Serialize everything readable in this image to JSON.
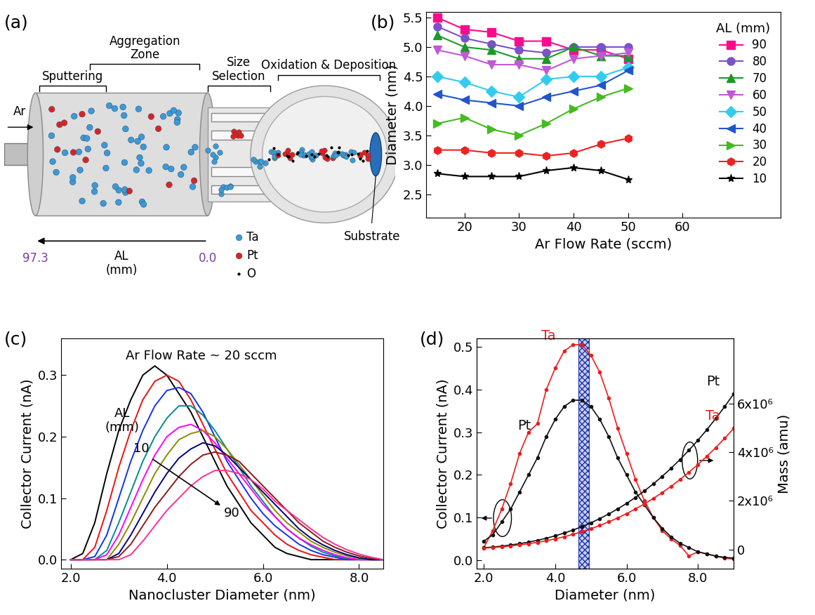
{
  "diagram": {
    "panel_label": "(a)",
    "labels": {
      "sputtering": "Sputtering",
      "aggregation": "Aggregation\nZone",
      "size_selection": "Size\nSelection",
      "oxidation": "Oxidation & Deposition",
      "substrate": "Substrate",
      "gas": "Ar"
    },
    "axis": {
      "label": "AL\n(mm)",
      "start": "97.3",
      "end": "0.0"
    },
    "species": [
      {
        "name": "Ta",
        "color": "#3a9ad9"
      },
      {
        "name": "Pt",
        "color": "#e02020"
      },
      {
        "name": "O",
        "color": "#000000"
      }
    ]
  },
  "chart_data": [
    {
      "type": "line",
      "panel_label": "(b)",
      "x_label": "Ar Flow Rate (sccm)",
      "y_label": "Diameter (nm)",
      "legend": "upper right",
      "legend_title": "AL (mm)",
      "x": [
        15,
        20,
        25,
        30,
        35,
        40,
        45,
        50
      ],
      "xlim": [
        13,
        78
      ],
      "xticks": [
        20,
        30,
        40,
        50,
        60
      ],
      "ylim": [
        2.1,
        5.6
      ],
      "yticks": [
        2.5,
        3.0,
        3.5,
        4.0,
        4.5,
        5.0,
        5.5
      ],
      "series": [
        {
          "name": "90",
          "color": "#ff0a8c",
          "marker": "square",
          "values": [
            5.5,
            5.3,
            5.25,
            5.1,
            5.1,
            4.95,
            4.95,
            4.8
          ]
        },
        {
          "name": "80",
          "color": "#7b52c7",
          "marker": "circle",
          "values": [
            5.35,
            5.15,
            5.05,
            4.95,
            4.9,
            5.0,
            5.0,
            5.0
          ]
        },
        {
          "name": "70",
          "color": "#1a9a2a",
          "marker": "triangle_up",
          "values": [
            5.2,
            5.0,
            4.95,
            4.8,
            4.8,
            5.0,
            4.85,
            4.85
          ]
        },
        {
          "name": "60",
          "color": "#c058d8",
          "marker": "triangle_down",
          "values": [
            4.95,
            4.85,
            4.7,
            4.7,
            4.6,
            4.8,
            4.85,
            4.9
          ]
        },
        {
          "name": "50",
          "color": "#33ccee",
          "marker": "diamond",
          "values": [
            4.5,
            4.4,
            4.25,
            4.15,
            4.45,
            4.5,
            4.5,
            4.65
          ]
        },
        {
          "name": "40",
          "color": "#2255cc",
          "marker": "triangle_left",
          "values": [
            4.2,
            4.1,
            4.05,
            4.0,
            4.15,
            4.25,
            4.35,
            4.6
          ]
        },
        {
          "name": "30",
          "color": "#44bb22",
          "marker": "triangle_right",
          "values": [
            3.7,
            3.8,
            3.6,
            3.5,
            3.7,
            3.95,
            4.15,
            4.3
          ]
        },
        {
          "name": "20",
          "color": "#ee2222",
          "marker": "hexagon",
          "values": [
            3.25,
            3.25,
            3.2,
            3.2,
            3.15,
            3.2,
            3.35,
            3.45
          ]
        },
        {
          "name": "10",
          "color": "#000000",
          "marker": "star",
          "values": [
            2.85,
            2.8,
            2.8,
            2.8,
            2.9,
            2.95,
            2.9,
            2.75
          ]
        }
      ]
    },
    {
      "type": "line",
      "panel_label": "(c)",
      "x_label": "Nanocluster Diameter (nm)",
      "y_label": "Collector Current (nA)",
      "annotations": {
        "condition": "Ar Flow Rate ~ 20 sccm",
        "group": "AL\n(mm)",
        "first": "10",
        "last": "90"
      },
      "x": [
        2.0,
        2.25,
        2.5,
        2.75,
        3.0,
        3.25,
        3.5,
        3.75,
        4.0,
        4.25,
        4.5,
        4.75,
        5.0,
        5.25,
        5.5,
        5.75,
        6.0,
        6.25,
        6.5,
        6.75,
        7.0,
        7.25,
        7.5,
        7.75,
        8.0,
        8.25,
        8.5
      ],
      "xlim": [
        1.8,
        8.5
      ],
      "xticks": [
        2.0,
        4.0,
        6.0,
        8.0
      ],
      "ylim": [
        -0.015,
        0.36
      ],
      "yticks": [
        0.0,
        0.1,
        0.2,
        0.3
      ],
      "series": [
        {
          "color": "#000000",
          "values": [
            0.0,
            0.01,
            0.06,
            0.14,
            0.21,
            0.26,
            0.3,
            0.315,
            0.3,
            0.27,
            0.24,
            0.2,
            0.16,
            0.12,
            0.09,
            0.06,
            0.04,
            0.02,
            0.01,
            0.005,
            0.0,
            0,
            0,
            0,
            0,
            0,
            0
          ]
        },
        {
          "color": "#ee1111",
          "values": [
            0.0,
            0.0,
            0.02,
            0.08,
            0.15,
            0.21,
            0.26,
            0.29,
            0.3,
            0.29,
            0.26,
            0.22,
            0.18,
            0.14,
            0.11,
            0.08,
            0.06,
            0.04,
            0.025,
            0.015,
            0.008,
            0.004,
            0,
            0,
            0,
            0,
            0
          ]
        },
        {
          "color": "#1133ee",
          "values": [
            0,
            0,
            0.005,
            0.04,
            0.1,
            0.16,
            0.21,
            0.25,
            0.275,
            0.28,
            0.27,
            0.24,
            0.2,
            0.16,
            0.13,
            0.1,
            0.075,
            0.055,
            0.04,
            0.025,
            0.015,
            0.008,
            0.004,
            0,
            0,
            0,
            0
          ]
        },
        {
          "color": "#008b8b",
          "values": [
            0,
            0,
            0,
            0.015,
            0.06,
            0.11,
            0.16,
            0.2,
            0.23,
            0.25,
            0.25,
            0.235,
            0.21,
            0.18,
            0.15,
            0.12,
            0.095,
            0.07,
            0.05,
            0.035,
            0.022,
            0.012,
            0.006,
            0.002,
            0,
            0,
            0
          ]
        },
        {
          "color": "#ff00ff",
          "values": [
            0,
            0,
            0,
            0.008,
            0.04,
            0.085,
            0.13,
            0.17,
            0.2,
            0.215,
            0.22,
            0.21,
            0.19,
            0.165,
            0.14,
            0.115,
            0.09,
            0.07,
            0.05,
            0.035,
            0.024,
            0.015,
            0.008,
            0.003,
            0,
            0,
            0
          ]
        },
        {
          "color": "#8b8b00",
          "values": [
            0,
            0,
            0,
            0,
            0.025,
            0.06,
            0.1,
            0.14,
            0.17,
            0.195,
            0.205,
            0.21,
            0.2,
            0.18,
            0.155,
            0.13,
            0.105,
            0.08,
            0.06,
            0.045,
            0.03,
            0.02,
            0.012,
            0.006,
            0.002,
            0,
            0
          ]
        },
        {
          "color": "#000080",
          "values": [
            0,
            0,
            0,
            0,
            0.01,
            0.04,
            0.075,
            0.11,
            0.14,
            0.165,
            0.18,
            0.19,
            0.185,
            0.17,
            0.15,
            0.13,
            0.11,
            0.09,
            0.07,
            0.05,
            0.035,
            0.024,
            0.015,
            0.008,
            0.003,
            0,
            0
          ]
        },
        {
          "color": "#8b1a1a",
          "values": [
            0,
            0,
            0,
            0,
            0.005,
            0.025,
            0.055,
            0.085,
            0.11,
            0.135,
            0.155,
            0.17,
            0.175,
            0.17,
            0.16,
            0.14,
            0.12,
            0.1,
            0.08,
            0.06,
            0.045,
            0.03,
            0.02,
            0.012,
            0.006,
            0.002,
            0
          ]
        },
        {
          "color": "#ff2f92",
          "values": [
            0,
            0,
            0,
            0,
            0,
            0.008,
            0.03,
            0.055,
            0.08,
            0.1,
            0.12,
            0.135,
            0.145,
            0.145,
            0.14,
            0.13,
            0.115,
            0.095,
            0.08,
            0.065,
            0.05,
            0.036,
            0.025,
            0.016,
            0.009,
            0.004,
            0
          ]
        }
      ]
    },
    {
      "type": "line",
      "panel_label": "(d)",
      "x_label": "Diameter (nm)",
      "y_label": "Collector Current (nA)",
      "y2_label": "Mass (amu)",
      "highlight": [
        4.65,
        4.95
      ],
      "x": [
        2.0,
        2.25,
        2.5,
        2.75,
        3.0,
        3.25,
        3.5,
        3.75,
        4.0,
        4.25,
        4.5,
        4.75,
        5.0,
        5.25,
        5.5,
        5.75,
        6.0,
        6.25,
        6.5,
        6.75,
        7.0,
        7.25,
        7.5,
        7.75,
        8.0,
        8.25,
        8.5,
        8.75,
        9.0
      ],
      "xlim": [
        1.8,
        9.0
      ],
      "xticks": [
        2.0,
        4.0,
        6.0,
        8.0
      ],
      "ylim": [
        -0.02,
        0.52
      ],
      "yticks": [
        0.0,
        0.1,
        0.2,
        0.3,
        0.4,
        0.5
      ],
      "y2lim": [
        -800000,
        8700000
      ],
      "y2ticks": [
        0,
        {
          "value": 2000000,
          "label": "2x10⁶"
        },
        {
          "value": 4000000,
          "label": "4x10⁶"
        },
        {
          "value": 6000000,
          "label": "6x10⁶"
        }
      ],
      "series": [
        {
          "name": "Ta",
          "color": "#ee1c1c",
          "marker": "circle",
          "values": [
            0.03,
            0.07,
            0.12,
            0.18,
            0.25,
            0.3,
            0.32,
            0.4,
            0.45,
            0.49,
            0.505,
            0.505,
            0.48,
            0.44,
            0.38,
            0.31,
            0.25,
            0.19,
            0.14,
            0.1,
            0.07,
            0.05,
            0.035,
            0.01,
            0.02,
            0.015,
            0.01,
            0.005,
            0.003
          ]
        },
        {
          "name": "Pt",
          "color": "#111111",
          "marker": "circle",
          "values": [
            0.045,
            0.06,
            0.09,
            0.12,
            0.16,
            0.2,
            0.24,
            0.29,
            0.33,
            0.36,
            0.375,
            0.375,
            0.36,
            0.33,
            0.29,
            0.24,
            0.2,
            0.16,
            0.13,
            0.1,
            0.075,
            0.055,
            0.04,
            0.03,
            0.02,
            0.015,
            0.01,
            0.007,
            0.005
          ]
        },
        {
          "name": "Pt",
          "color": "#111111",
          "marker": "circle",
          "axis": "y2",
          "values": [
            70000,
            100000,
            137000,
            186000,
            237000,
            301000,
            376000,
            463000,
            562000,
            674000,
            800000,
            941000,
            1097000,
            1270000,
            1460000,
            1669000,
            1896000,
            2143000,
            2411000,
            2700000,
            3011000,
            3345000,
            3704000,
            4087000,
            4495000,
            4929000,
            5391000,
            5880000,
            6400000
          ]
        },
        {
          "name": "Ta",
          "color": "#ee1c1c",
          "marker": "circle",
          "axis": "y2",
          "values": [
            54000,
            78000,
            107000,
            145000,
            184000,
            234000,
            293000,
            360000,
            437000,
            524000,
            622000,
            732000,
            853000,
            988000,
            1136000,
            1298000,
            1475000,
            1667000,
            1876000,
            2100000,
            2342000,
            2602000,
            2881000,
            3180000,
            3497000,
            3835000,
            4194000,
            4574000,
            4979000
          ]
        }
      ]
    }
  ]
}
